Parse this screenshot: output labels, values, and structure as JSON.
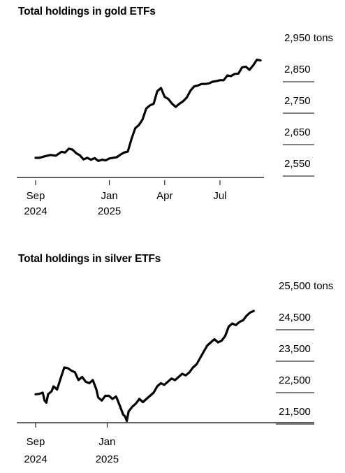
{
  "chart_data": [
    {
      "type": "line",
      "title": "Total holdings in gold ETFs",
      "unit": "tons",
      "y_ticks": [
        2550,
        2650,
        2750,
        2850,
        2950
      ],
      "y_tick_labels": [
        "2,550",
        "2,650",
        "2,750",
        "2,850",
        "2,950 tons"
      ],
      "ylim": [
        2520,
        2960
      ],
      "x_ticks": [
        {
          "label": "Sep",
          "year": "2024",
          "month": 0
        },
        {
          "label": "Jan",
          "year": "2025",
          "month": 4
        },
        {
          "label": "Apr",
          "year": "",
          "month": 7
        },
        {
          "label": "Jul",
          "year": "",
          "month": 10
        }
      ],
      "xlim_months": [
        0,
        13
      ],
      "grid": "horizontal lines under right-side labels",
      "line_color": "#000000",
      "x_month": [
        0.0,
        0.2,
        0.5,
        0.8,
        1.1,
        1.4,
        1.6,
        1.8,
        2.0,
        2.2,
        2.4,
        2.6,
        2.8,
        3.0,
        3.2,
        3.4,
        3.6,
        3.8,
        4.0,
        4.2,
        4.4,
        4.6,
        4.8,
        5.0,
        5.2,
        5.4,
        5.6,
        5.8,
        6.0,
        6.2,
        6.4,
        6.6,
        6.8,
        7.0,
        7.2,
        7.4,
        7.6,
        7.8,
        8.0,
        8.2,
        8.4,
        8.6,
        8.8,
        9.0,
        9.2,
        9.4,
        9.6,
        9.8,
        10.0,
        10.2,
        10.4,
        10.6,
        10.8,
        11.0,
        11.2,
        11.4,
        11.6,
        11.8,
        12.0,
        12.2
      ],
      "values": [
        2568,
        2568,
        2573,
        2577,
        2575,
        2587,
        2585,
        2597,
        2594,
        2583,
        2576,
        2563,
        2568,
        2562,
        2567,
        2558,
        2562,
        2560,
        2566,
        2568,
        2570,
        2578,
        2585,
        2588,
        2628,
        2662,
        2672,
        2690,
        2725,
        2735,
        2740,
        2780,
        2790,
        2762,
        2755,
        2740,
        2730,
        2740,
        2748,
        2760,
        2782,
        2795,
        2798,
        2803,
        2803,
        2805,
        2810,
        2812,
        2815,
        2815,
        2830,
        2828,
        2835,
        2836,
        2856,
        2858,
        2848,
        2862,
        2880,
        2878
      ]
    },
    {
      "type": "line",
      "title": "Total holdings in silver ETFs",
      "unit": "tons",
      "y_ticks": [
        21500,
        22500,
        23500,
        24500,
        25500
      ],
      "y_tick_labels": [
        "21,500",
        "22,500",
        "23,500",
        "24,500",
        "25,500 tons"
      ],
      "ylim": [
        21100,
        25600
      ],
      "x_ticks": [
        {
          "label": "Sep",
          "year": "2024",
          "month": 0
        },
        {
          "label": "Jan",
          "year": "2025",
          "month": 4
        }
      ],
      "xlim_months": [
        0,
        13
      ],
      "grid": "horizontal lines under right-side labels",
      "line_color": "#000000",
      "x_month": [
        0.0,
        0.2,
        0.4,
        0.5,
        0.6,
        0.7,
        0.9,
        1.0,
        1.2,
        1.4,
        1.6,
        1.8,
        2.0,
        2.2,
        2.4,
        2.6,
        2.8,
        3.0,
        3.2,
        3.4,
        3.5,
        3.7,
        3.9,
        4.1,
        4.3,
        4.5,
        4.7,
        4.9,
        5.0,
        5.1,
        5.2,
        5.4,
        5.6,
        5.8,
        6.0,
        6.2,
        6.4,
        6.6,
        6.8,
        7.0,
        7.2,
        7.4,
        7.6,
        7.8,
        8.0,
        8.2,
        8.4,
        8.6,
        8.8,
        9.0,
        9.2,
        9.4,
        9.6,
        9.8,
        10.0,
        10.2,
        10.4,
        10.6,
        10.8,
        11.0,
        11.2,
        11.4,
        11.6,
        11.8,
        12.0,
        12.2
      ],
      "values": [
        22050,
        22060,
        22100,
        21850,
        21780,
        22050,
        22150,
        22300,
        22200,
        22550,
        22900,
        22880,
        22800,
        22750,
        22500,
        22600,
        22450,
        22400,
        22500,
        22200,
        21950,
        21850,
        22000,
        22000,
        21900,
        21980,
        21700,
        21400,
        21350,
        21200,
        21500,
        21650,
        21750,
        21900,
        21800,
        21900,
        22000,
        22100,
        22300,
        22400,
        22350,
        22450,
        22550,
        22500,
        22600,
        22700,
        22650,
        22750,
        22900,
        23000,
        23200,
        23400,
        23600,
        23700,
        23800,
        23700,
        23750,
        23900,
        24200,
        24300,
        24250,
        24350,
        24400,
        24550,
        24650,
        24700
      ]
    }
  ]
}
